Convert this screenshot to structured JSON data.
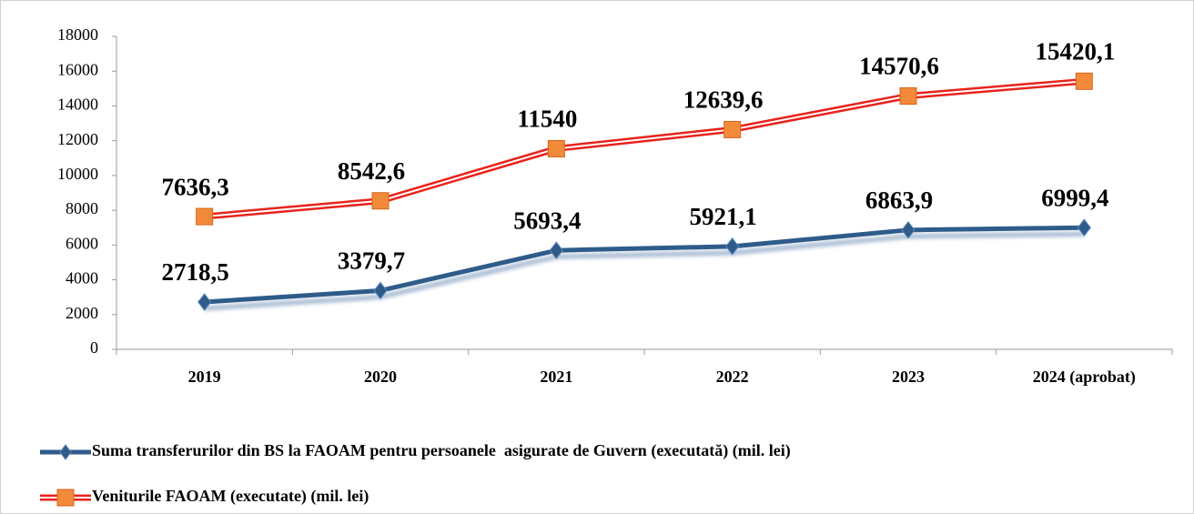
{
  "chart_data": {
    "type": "line",
    "categories": [
      "2019",
      "2020",
      "2021",
      "2022",
      "2023",
      "2024 (aprobat)"
    ],
    "series": [
      {
        "name": "Suma transferurilor din BS la FAOAM pentru persoanele  asigurate de Guvern (executată) (mil. lei)",
        "color": "#2f5b8a",
        "values": [
          2718.5,
          3379.7,
          5693.4,
          5921.1,
          6863.9,
          6999.4
        ],
        "value_labels": [
          "2718,5",
          "3379,7",
          "5693,4",
          "5921,1",
          "6863,9",
          "6999,4"
        ]
      },
      {
        "name": "Veniturile FAOAM (executate) (mil. lei)",
        "color": "#e8231c",
        "values": [
          7636.3,
          8542.6,
          11540,
          12639.6,
          14570.6,
          15420.1
        ],
        "value_labels": [
          "7636,3",
          "8542,6",
          "11540",
          "12639,6",
          "14570,6",
          "15420,1"
        ]
      }
    ],
    "ylim": [
      0,
      18000
    ],
    "yticks": [
      0,
      2000,
      4000,
      6000,
      8000,
      10000,
      12000,
      14000,
      16000,
      18000
    ],
    "grid": false,
    "legend": "bottom"
  }
}
